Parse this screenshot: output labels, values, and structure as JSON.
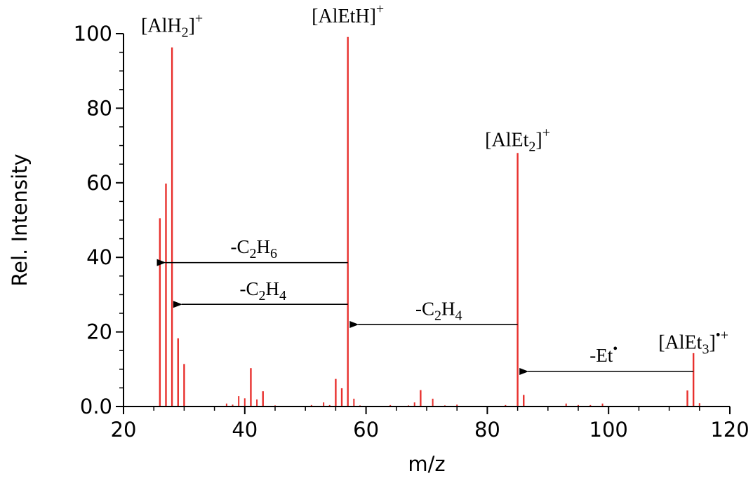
{
  "chart_data": {
    "type": "bar",
    "xlabel": "m/z",
    "ylabel": "Rel. Intensity",
    "xlim": [
      20,
      120
    ],
    "ylim": [
      0,
      100
    ],
    "x_major_ticks": [
      20,
      40,
      60,
      80,
      100,
      120
    ],
    "y_major_ticks": [
      0,
      20,
      40,
      60,
      80,
      100
    ],
    "x_tick_labels": [
      "20",
      "40",
      "60",
      "80",
      "100",
      "120"
    ],
    "y_tick_labels": [
      "0.0",
      "20",
      "40",
      "60",
      "80",
      "100"
    ],
    "x_minor_step": 5,
    "y_minor_step": 5,
    "bar_color": "#e8302d",
    "grid": false,
    "peaks": [
      {
        "x": 26,
        "y": 50.5
      },
      {
        "x": 27,
        "y": 59.8
      },
      {
        "x": 28,
        "y": 96.3
      },
      {
        "x": 29,
        "y": 18.3
      },
      {
        "x": 30,
        "y": 11.4
      },
      {
        "x": 37,
        "y": 0.8
      },
      {
        "x": 38,
        "y": 0.5
      },
      {
        "x": 39,
        "y": 2.8
      },
      {
        "x": 40,
        "y": 2.2
      },
      {
        "x": 41,
        "y": 10.3
      },
      {
        "x": 42,
        "y": 1.9
      },
      {
        "x": 43,
        "y": 4.1
      },
      {
        "x": 45,
        "y": 0.3
      },
      {
        "x": 51,
        "y": 0.4
      },
      {
        "x": 53,
        "y": 1.1
      },
      {
        "x": 54,
        "y": 0.4
      },
      {
        "x": 55,
        "y": 7.4
      },
      {
        "x": 56,
        "y": 4.9
      },
      {
        "x": 57,
        "y": 99.1
      },
      {
        "x": 58,
        "y": 2.1
      },
      {
        "x": 59,
        "y": 0.3
      },
      {
        "x": 64,
        "y": 0.4
      },
      {
        "x": 67,
        "y": 0.3
      },
      {
        "x": 68,
        "y": 1.1
      },
      {
        "x": 69,
        "y": 4.4
      },
      {
        "x": 71,
        "y": 2.1
      },
      {
        "x": 73,
        "y": 0.3
      },
      {
        "x": 75,
        "y": 0.5
      },
      {
        "x": 83,
        "y": 0.4
      },
      {
        "x": 85,
        "y": 68.0
      },
      {
        "x": 86,
        "y": 3.1
      },
      {
        "x": 93,
        "y": 0.8
      },
      {
        "x": 95,
        "y": 0.4
      },
      {
        "x": 97,
        "y": 0.4
      },
      {
        "x": 99,
        "y": 0.8
      },
      {
        "x": 113,
        "y": 4.3
      },
      {
        "x": 114,
        "y": 14.3
      },
      {
        "x": 115,
        "y": 0.9
      }
    ],
    "ion_labels": [
      {
        "id": "alh2",
        "base": "[AlH",
        "sub": "2",
        "close": "]",
        "sup": "+",
        "x": 28,
        "y": 100.5
      },
      {
        "id": "aleth",
        "base": "[AlEtH]",
        "sub": "",
        "close": "",
        "sup": "+",
        "x": 57,
        "y": 103.0
      },
      {
        "id": "alet2",
        "base": "[AlEt",
        "sub": "2",
        "close": "]",
        "sup": "+",
        "x": 85,
        "y": 69.8
      },
      {
        "id": "alet3",
        "base": "[AlEt",
        "sub": "3",
        "close": "]",
        "sup": "•+",
        "x": 114,
        "y": 15.5
      }
    ],
    "losses": [
      {
        "id": "c2h6",
        "prefix": "-C",
        "sub1": "2",
        "mid": "H",
        "sub2": "6",
        "sup": "",
        "from": 57,
        "to": 25.5,
        "y": 38.6,
        "label_x": 41.5,
        "label_y": 41.2
      },
      {
        "id": "c2h4-a",
        "prefix": "-C",
        "sub1": "2",
        "mid": "H",
        "sub2": "4",
        "sup": "",
        "from": 57,
        "to": 28.2,
        "y": 27.4,
        "label_x": 43,
        "label_y": 29.9
      },
      {
        "id": "c2h4-b",
        "prefix": "-C",
        "sub1": "2",
        "mid": "H",
        "sub2": "4",
        "sup": "",
        "from": 85,
        "to": 57.3,
        "y": 22.0,
        "label_x": 72,
        "label_y": 24.5
      },
      {
        "id": "et",
        "prefix": "-Et",
        "sub1": "",
        "mid": "",
        "sub2": "",
        "sup": "•",
        "from": 114,
        "to": 85.3,
        "y": 9.4,
        "label_x": 99.2,
        "label_y": 12.0
      }
    ]
  }
}
